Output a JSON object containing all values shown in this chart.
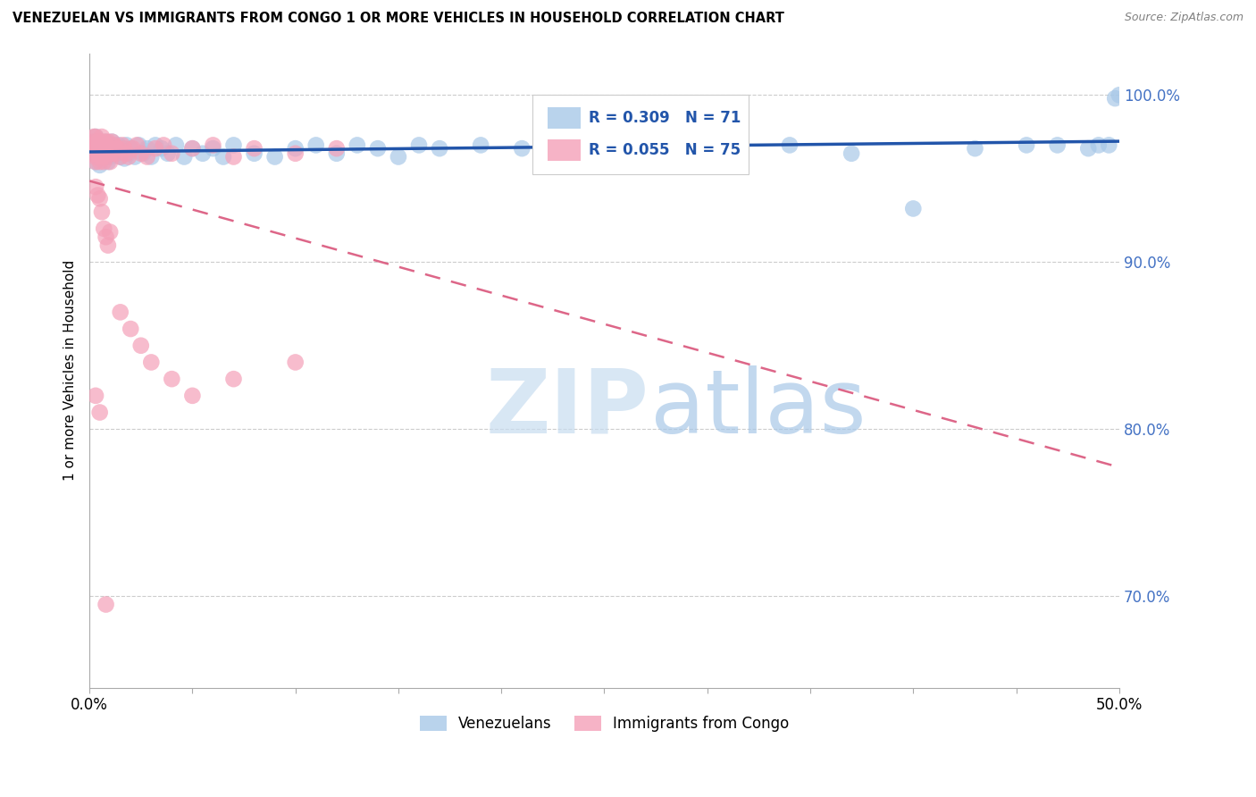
{
  "title": "VENEZUELAN VS IMMIGRANTS FROM CONGO 1 OR MORE VEHICLES IN HOUSEHOLD CORRELATION CHART",
  "source": "Source: ZipAtlas.com",
  "ylabel": "1 or more Vehicles in Household",
  "xlim": [
    0.0,
    0.5
  ],
  "ylim": [
    0.645,
    1.025
  ],
  "ytick_positions": [
    0.7,
    0.8,
    0.9,
    1.0
  ],
  "ytick_labels": [
    "70.0%",
    "80.0%",
    "90.0%",
    "100.0%"
  ],
  "venezuelan_color": "#a8c8e8",
  "congo_color": "#f4a0b8",
  "trend_venezuelan_color": "#2255aa",
  "trend_congo_color": "#dd6688",
  "R_venezuelan": 0.309,
  "N_venezuelan": 71,
  "R_congo": 0.055,
  "N_congo": 75,
  "legend_label_venezuelan": "Venezuelans",
  "legend_label_congo": "Immigrants from Congo",
  "watermark_zip": "ZIP",
  "watermark_atlas": "atlas",
  "background_color": "#ffffff",
  "venezuelan_x": [
    0.001,
    0.002,
    0.002,
    0.003,
    0.003,
    0.004,
    0.004,
    0.005,
    0.005,
    0.006,
    0.006,
    0.007,
    0.007,
    0.008,
    0.008,
    0.009,
    0.009,
    0.01,
    0.01,
    0.011,
    0.011,
    0.012,
    0.013,
    0.014,
    0.015,
    0.016,
    0.017,
    0.018,
    0.019,
    0.02,
    0.022,
    0.024,
    0.026,
    0.028,
    0.03,
    0.032,
    0.035,
    0.038,
    0.042,
    0.046,
    0.05,
    0.055,
    0.06,
    0.065,
    0.07,
    0.08,
    0.09,
    0.1,
    0.11,
    0.12,
    0.13,
    0.14,
    0.15,
    0.16,
    0.17,
    0.19,
    0.21,
    0.24,
    0.27,
    0.31,
    0.34,
    0.37,
    0.4,
    0.43,
    0.455,
    0.47,
    0.485,
    0.49,
    0.495,
    0.498,
    0.5
  ],
  "venezuelan_y": [
    0.968,
    0.965,
    0.972,
    0.96,
    0.975,
    0.963,
    0.971,
    0.958,
    0.968,
    0.963,
    0.97,
    0.962,
    0.968,
    0.965,
    0.972,
    0.96,
    0.968,
    0.963,
    0.97,
    0.965,
    0.972,
    0.968,
    0.965,
    0.97,
    0.963,
    0.968,
    0.962,
    0.97,
    0.965,
    0.968,
    0.963,
    0.97,
    0.965,
    0.968,
    0.963,
    0.97,
    0.968,
    0.965,
    0.97,
    0.963,
    0.968,
    0.965,
    0.968,
    0.963,
    0.97,
    0.965,
    0.963,
    0.968,
    0.97,
    0.965,
    0.97,
    0.968,
    0.963,
    0.97,
    0.968,
    0.97,
    0.968,
    0.965,
    0.97,
    0.968,
    0.97,
    0.965,
    0.932,
    0.968,
    0.97,
    0.97,
    0.968,
    0.97,
    0.97,
    0.998,
    1.0
  ],
  "congo_x": [
    0.001,
    0.001,
    0.002,
    0.002,
    0.002,
    0.003,
    0.003,
    0.003,
    0.003,
    0.003,
    0.004,
    0.004,
    0.004,
    0.004,
    0.005,
    0.005,
    0.005,
    0.005,
    0.005,
    0.006,
    0.006,
    0.006,
    0.006,
    0.007,
    0.007,
    0.007,
    0.008,
    0.008,
    0.008,
    0.009,
    0.009,
    0.01,
    0.01,
    0.011,
    0.011,
    0.012,
    0.013,
    0.014,
    0.015,
    0.016,
    0.017,
    0.018,
    0.019,
    0.021,
    0.023,
    0.025,
    0.028,
    0.032,
    0.036,
    0.04,
    0.05,
    0.06,
    0.07,
    0.08,
    0.1,
    0.12,
    0.003,
    0.004,
    0.005,
    0.006,
    0.007,
    0.008,
    0.009,
    0.01,
    0.015,
    0.02,
    0.025,
    0.03,
    0.04,
    0.05,
    0.07,
    0.1,
    0.003,
    0.005,
    0.008
  ],
  "congo_y": [
    0.97,
    0.968,
    0.972,
    0.965,
    0.975,
    0.963,
    0.968,
    0.97,
    0.975,
    0.96,
    0.968,
    0.972,
    0.965,
    0.97,
    0.96,
    0.965,
    0.97,
    0.972,
    0.968,
    0.965,
    0.963,
    0.97,
    0.975,
    0.96,
    0.968,
    0.972,
    0.963,
    0.97,
    0.965,
    0.968,
    0.972,
    0.96,
    0.968,
    0.972,
    0.965,
    0.97,
    0.965,
    0.968,
    0.963,
    0.97,
    0.968,
    0.965,
    0.963,
    0.968,
    0.97,
    0.965,
    0.963,
    0.968,
    0.97,
    0.965,
    0.968,
    0.97,
    0.963,
    0.968,
    0.965,
    0.968,
    0.945,
    0.94,
    0.938,
    0.93,
    0.92,
    0.915,
    0.91,
    0.918,
    0.87,
    0.86,
    0.85,
    0.84,
    0.83,
    0.82,
    0.83,
    0.84,
    0.82,
    0.81,
    0.695
  ]
}
